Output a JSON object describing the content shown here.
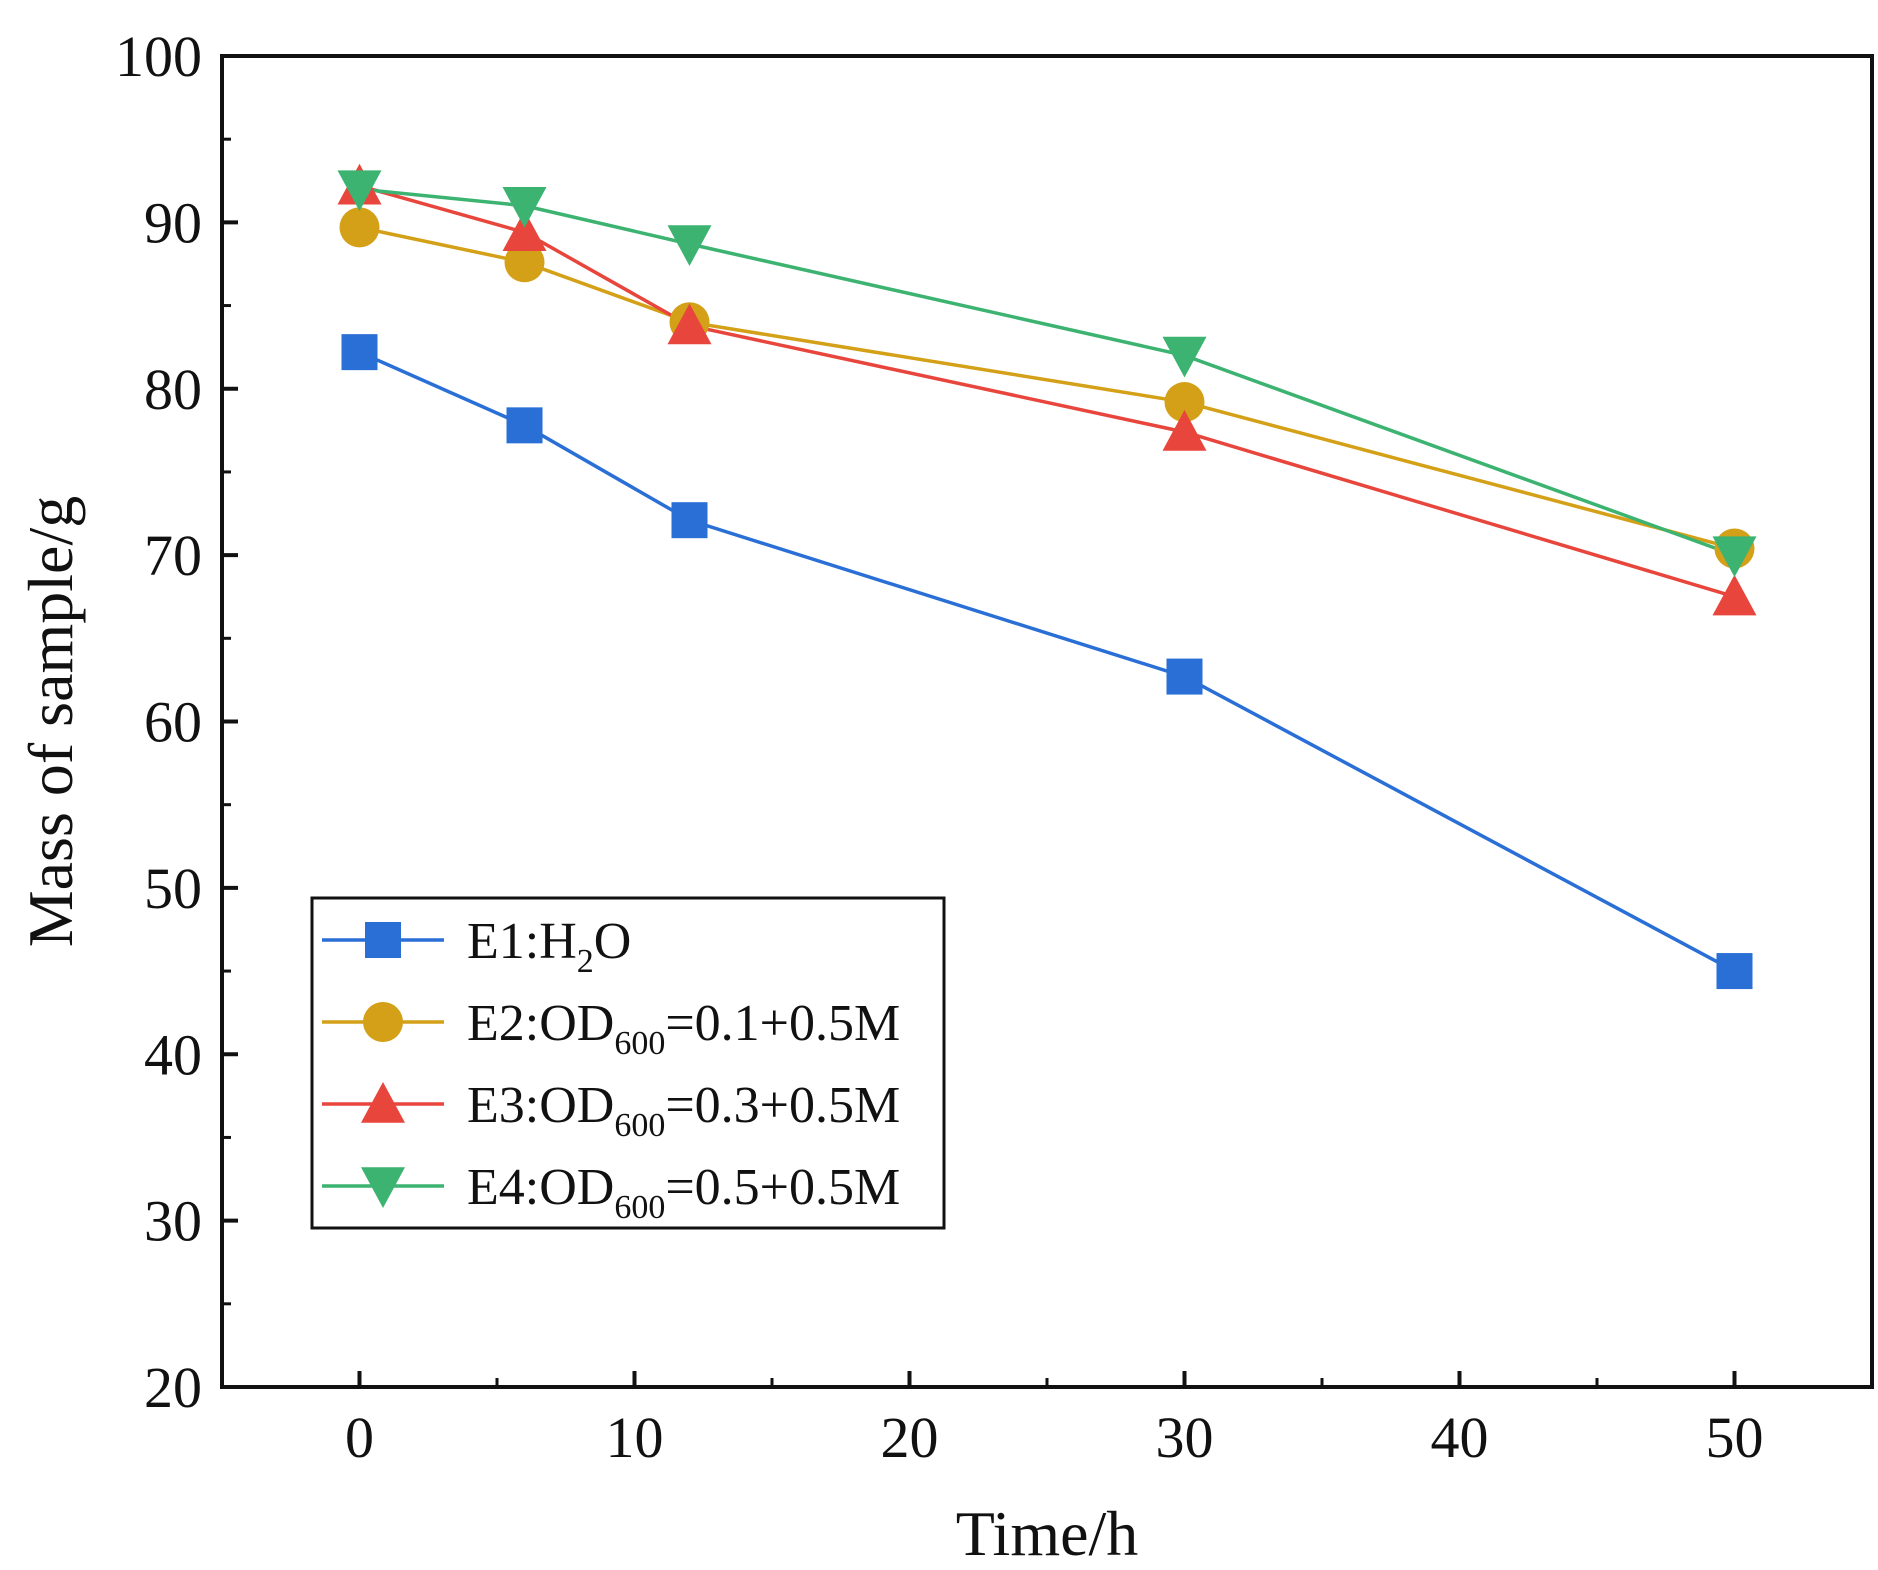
{
  "chart_data": {
    "type": "line",
    "title": "",
    "xlabel": "Time/h",
    "ylabel": "Mass of sample/g",
    "xlim": [
      -5,
      55
    ],
    "ylim": [
      20,
      100
    ],
    "x_ticks": [
      0,
      10,
      20,
      30,
      40,
      50
    ],
    "y_ticks": [
      20,
      30,
      40,
      50,
      60,
      70,
      80,
      90,
      100
    ],
    "x": [
      0,
      6,
      12,
      30,
      50
    ],
    "legend_position": "lower-left",
    "series": [
      {
        "name": "E1:H2O",
        "label_main": "E1:H",
        "label_sub": "2",
        "label_tail": "O",
        "color": "#2a6fd6",
        "marker": "square",
        "values": [
          82.2,
          77.8,
          72.1,
          62.7,
          45.0
        ]
      },
      {
        "name": "E2:OD600=0.1+0.5M",
        "label_main": "E2:OD",
        "label_sub": "600",
        "label_tail": "=0.1+0.5M",
        "color": "#d4a017",
        "marker": "circle",
        "values": [
          89.7,
          87.6,
          84.0,
          79.2,
          70.4
        ]
      },
      {
        "name": "E3:OD600=0.3+0.5M",
        "label_main": "E3:OD",
        "label_sub": "600",
        "label_tail": "=0.3+0.5M",
        "color": "#e8453c",
        "marker": "triangle-up",
        "values": [
          92.2,
          89.4,
          83.8,
          77.4,
          67.5
        ]
      },
      {
        "name": "E4:OD600=0.5+0.5M",
        "label_main": "E4:OD",
        "label_sub": "600",
        "label_tail": "=0.5+0.5M",
        "color": "#3cb371",
        "marker": "triangle-down",
        "values": [
          92.0,
          91.0,
          88.7,
          82.0,
          70.0
        ]
      }
    ]
  }
}
